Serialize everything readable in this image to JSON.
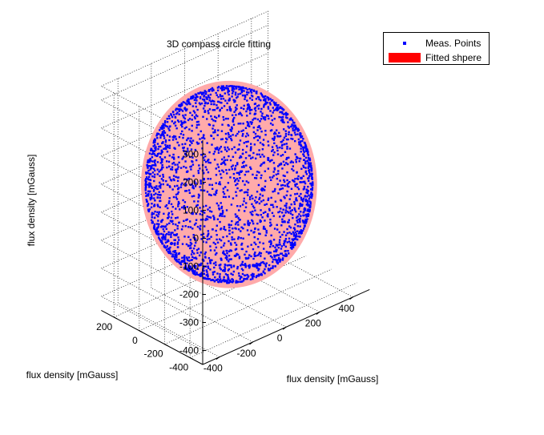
{
  "chart_data": {
    "type": "scatter",
    "title": "3D compass circle fitting",
    "xlabel": "flux density [mGauss]",
    "ylabel": "flux density [mGauss]",
    "zlabel": "flux density [mGauss]",
    "xticks": [
      "-400",
      "-200",
      "0",
      "200",
      "400"
    ],
    "yticks": [
      "-400",
      "-200",
      "0",
      "200"
    ],
    "zticks": [
      "300",
      "200",
      "100",
      "0",
      "-100",
      "-200",
      "-300",
      "-400"
    ],
    "xlim": [
      -500,
      500
    ],
    "ylim": [
      -500,
      300
    ],
    "zlim": [
      -450,
      350
    ],
    "grid": true,
    "legend_position": "top-right",
    "series": [
      {
        "name": "Meas. Points",
        "kind": "points",
        "color": "#0000ff",
        "center": [
          0,
          -50,
          -50
        ],
        "radius": 400,
        "count": 2600
      },
      {
        "name": "Fitted shpere",
        "kind": "sphere",
        "color": "#ffaaaa",
        "legend_color": "#ff0000",
        "center": [
          0,
          -50,
          -50
        ],
        "radius": 420
      }
    ]
  },
  "legend": {
    "items": [
      {
        "label": "Meas. Points",
        "color": "#0000ff"
      },
      {
        "label": "Fitted shpere",
        "color": "#ff0000"
      }
    ]
  }
}
